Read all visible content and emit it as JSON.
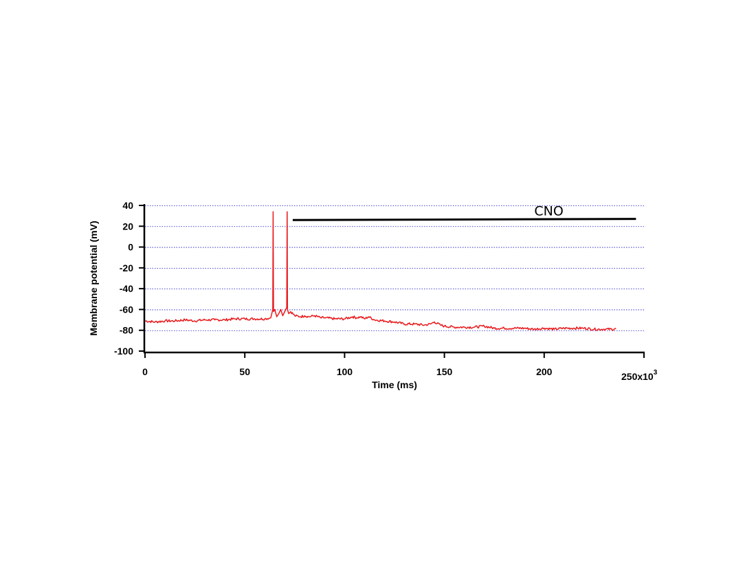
{
  "chart_data": {
    "type": "line",
    "xlabel": "Time (ms)",
    "ylabel": "Membrane potential (mV)",
    "x_multiplier_label": "250x10",
    "x_multiplier_exponent": "3",
    "xlim": [
      0,
      250000
    ],
    "ylim": [
      -100,
      40
    ],
    "x_ticks": [
      0,
      50000,
      100000,
      150000,
      200000,
      250000
    ],
    "x_tick_labels": [
      "0",
      "50",
      "100",
      "150",
      "200",
      ""
    ],
    "y_ticks": [
      40,
      20,
      0,
      -20,
      -40,
      -60,
      -80,
      -100
    ],
    "y_tick_labels": [
      "40",
      "20",
      "0",
      "-20",
      "-40",
      "-60",
      "-80",
      "-100"
    ],
    "grid": true,
    "grid_color": "#1010c0",
    "series": [
      {
        "color": "#e8191c",
        "points": [
          [
            0,
            -71
          ],
          [
            5000,
            -72
          ],
          [
            10000,
            -71
          ],
          [
            15000,
            -71
          ],
          [
            20000,
            -70
          ],
          [
            25000,
            -71
          ],
          [
            30000,
            -70
          ],
          [
            35000,
            -70
          ],
          [
            40000,
            -70
          ],
          [
            45000,
            -69
          ],
          [
            50000,
            -69
          ],
          [
            55000,
            -69
          ],
          [
            60000,
            -69
          ],
          [
            63000,
            -68
          ],
          [
            64000,
            -60
          ],
          [
            64200,
            34
          ],
          [
            64400,
            -62
          ],
          [
            65000,
            -60
          ],
          [
            66000,
            -67
          ],
          [
            67000,
            -64
          ],
          [
            68000,
            -60
          ],
          [
            69000,
            -66
          ],
          [
            70000,
            -62
          ],
          [
            71000,
            -58
          ],
          [
            71200,
            34
          ],
          [
            71400,
            -60
          ],
          [
            72000,
            -64
          ],
          [
            73000,
            -62
          ],
          [
            75000,
            -66
          ],
          [
            78000,
            -67
          ],
          [
            80000,
            -66
          ],
          [
            82000,
            -67
          ],
          [
            85000,
            -66
          ],
          [
            88000,
            -68
          ],
          [
            90000,
            -68
          ],
          [
            95000,
            -69
          ],
          [
            100000,
            -69
          ],
          [
            104000,
            -67
          ],
          [
            106000,
            -68
          ],
          [
            108000,
            -67
          ],
          [
            110000,
            -69
          ],
          [
            112000,
            -67
          ],
          [
            115000,
            -70
          ],
          [
            120000,
            -71
          ],
          [
            125000,
            -72
          ],
          [
            130000,
            -74
          ],
          [
            135000,
            -74
          ],
          [
            140000,
            -75
          ],
          [
            143000,
            -74
          ],
          [
            145000,
            -72
          ],
          [
            148000,
            -75
          ],
          [
            150000,
            -76
          ],
          [
            155000,
            -77
          ],
          [
            160000,
            -77
          ],
          [
            165000,
            -77
          ],
          [
            170000,
            -76
          ],
          [
            175000,
            -78
          ],
          [
            180000,
            -78
          ],
          [
            185000,
            -78
          ],
          [
            190000,
            -78
          ],
          [
            195000,
            -79
          ],
          [
            200000,
            -78
          ],
          [
            205000,
            -79
          ],
          [
            210000,
            -78
          ],
          [
            215000,
            -78
          ],
          [
            220000,
            -78
          ],
          [
            225000,
            -79
          ],
          [
            230000,
            -79
          ],
          [
            235000,
            -79
          ],
          [
            236000,
            -78
          ]
        ]
      }
    ],
    "annotations": [
      {
        "label": "CNO",
        "x_start": 74000,
        "x_end": 246000,
        "y_start": 26,
        "y_end": 27,
        "color": "#000000"
      }
    ]
  }
}
